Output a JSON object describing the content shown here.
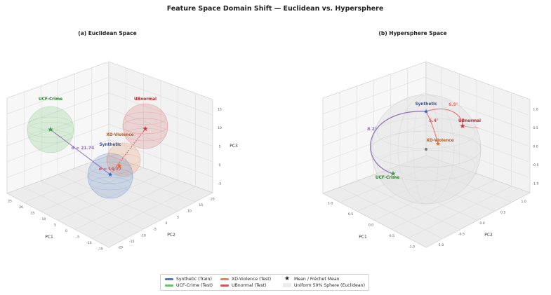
{
  "figure": {
    "title": "Feature Space Domain Shift — Euclidean vs. Hypersphere"
  },
  "colors": {
    "synthetic": "#4a78c4",
    "ucf": "#6cc06c",
    "xd": "#e8844c",
    "ub": "#d4585c",
    "path_purple": "#8c6fb8",
    "grid": "#d6d6d6"
  },
  "chart_data": [
    {
      "type": "scatter",
      "title": "(a) Euclidean Space",
      "xlabel": "PC1",
      "ylabel": "PC2",
      "zlabel": "PC3",
      "x_ticks": [
        "-15",
        "-10",
        "-5",
        "0",
        "5",
        "10",
        "15",
        "20",
        "25"
      ],
      "y_ticks": [
        "-20",
        "-15",
        "-10",
        "-5",
        "0",
        "5",
        "10",
        "15",
        "20"
      ],
      "z_ticks": [
        "-5",
        "0",
        "5",
        "10",
        "15"
      ],
      "series": [
        {
          "name": "Synthetic",
          "sphere_color": "synthetic",
          "label_color": "#3b4f8a"
        },
        {
          "name": "UCF-Crime",
          "sphere_color": "ucf",
          "label_color": "#2e7d32"
        },
        {
          "name": "XD-Violence",
          "sphere_color": "xd",
          "label_color": "#b35c1e"
        },
        {
          "name": "UBnormal",
          "sphere_color": "ub",
          "label_color": "#a8282c"
        }
      ],
      "annotations": [
        {
          "text": "d = 21.74",
          "color": "#8c6fb8"
        },
        {
          "text": "d = 14.27",
          "color": "#d4585c"
        }
      ]
    },
    {
      "type": "scatter",
      "title": "(b) Hypersphere Space",
      "xlabel": "PC1",
      "ylabel": "PC2",
      "zlabel": "",
      "x_ticks": [
        "-1.0",
        "-0.5",
        "0.0",
        "0.5",
        "1.0"
      ],
      "y_ticks": [
        "-1.0",
        "-0.5",
        "0.0",
        "0.5",
        "1.0"
      ],
      "z_ticks": [
        "-1.0",
        "-0.5",
        "0.0",
        "0.5",
        "1.0"
      ],
      "series": [
        {
          "name": "Synthetic",
          "label_color": "#3b4f8a"
        },
        {
          "name": "UCF-Crime",
          "label_color": "#2e7d32"
        },
        {
          "name": "XD-Violence",
          "label_color": "#b35c1e"
        },
        {
          "name": "UBnormal",
          "label_color": "#a8282c"
        }
      ],
      "annotations": [
        {
          "text": "8.2°",
          "color": "#8c6fb8"
        },
        {
          "text": "6.5°",
          "color": "#d4585c"
        },
        {
          "text": "5.4°",
          "color": "#d4585c"
        }
      ]
    }
  ],
  "legend": {
    "items": [
      {
        "label": "Synthetic (Train)",
        "kind": "line",
        "color": "#4a78c4"
      },
      {
        "label": "UCF-Crime (Test)",
        "kind": "line",
        "color": "#6cc06c"
      },
      {
        "label": "XD-Violence (Test)",
        "kind": "line",
        "color": "#e8844c"
      },
      {
        "label": "UBnormal (Test)",
        "kind": "line",
        "color": "#d4585c"
      },
      {
        "label": "Mean / Fréchet Mean",
        "kind": "star",
        "color": "#222222"
      },
      {
        "label": "Uniform 50% Sphere (Euclidean)",
        "kind": "box",
        "color": "#e6e6e6"
      }
    ]
  }
}
